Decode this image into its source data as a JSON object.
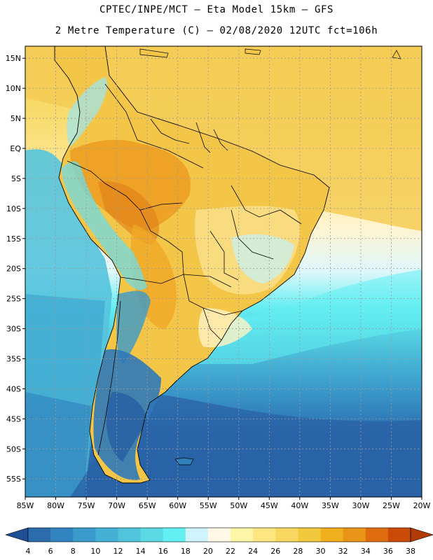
{
  "header": {
    "line1": "CPTEC/INPE/MCT –  Eta Model 15km – GFS",
    "line2": "2 Metre Temperature (C) – 02/08/2020 12UTC fct=106h"
  },
  "map": {
    "lon_range": [
      -85,
      -20
    ],
    "lat_range": [
      -58,
      17
    ],
    "lat_ticks": [
      {
        "value": 15,
        "label": "15N"
      },
      {
        "value": 10,
        "label": "10N"
      },
      {
        "value": 5,
        "label": "5N"
      },
      {
        "value": 0,
        "label": "EQ"
      },
      {
        "value": -5,
        "label": "5S"
      },
      {
        "value": -10,
        "label": "10S"
      },
      {
        "value": -15,
        "label": "15S"
      },
      {
        "value": -20,
        "label": "20S"
      },
      {
        "value": -25,
        "label": "25S"
      },
      {
        "value": -30,
        "label": "30S"
      },
      {
        "value": -35,
        "label": "35S"
      },
      {
        "value": -40,
        "label": "40S"
      },
      {
        "value": -45,
        "label": "45S"
      },
      {
        "value": -50,
        "label": "50S"
      },
      {
        "value": -55,
        "label": "55S"
      }
    ],
    "lon_ticks": [
      {
        "value": -85,
        "label": "85W"
      },
      {
        "value": -80,
        "label": "80W"
      },
      {
        "value": -75,
        "label": "75W"
      },
      {
        "value": -70,
        "label": "70W"
      },
      {
        "value": -65,
        "label": "65W"
      },
      {
        "value": -60,
        "label": "60W"
      },
      {
        "value": -55,
        "label": "55W"
      },
      {
        "value": -50,
        "label": "50W"
      },
      {
        "value": -45,
        "label": "45W"
      },
      {
        "value": -40,
        "label": "40W"
      },
      {
        "value": -35,
        "label": "35W"
      },
      {
        "value": -30,
        "label": "30W"
      },
      {
        "value": -25,
        "label": "25W"
      },
      {
        "value": -20,
        "label": "20W"
      }
    ]
  },
  "colorbar": {
    "labels": [
      "4",
      "6",
      "8",
      "10",
      "12",
      "14",
      "16",
      "18",
      "20",
      "22",
      "24",
      "26",
      "28",
      "30",
      "32",
      "34",
      "36",
      "38"
    ],
    "colors": [
      "#2b6cad",
      "#3184bf",
      "#3a9acb",
      "#44b0d4",
      "#4fc4dc",
      "#5ad8e4",
      "#63f0f2",
      "#cff3ff",
      "#fff8e6",
      "#fff5a6",
      "#ffe680",
      "#f8d860",
      "#f2c83c",
      "#f0b01e",
      "#ea9418",
      "#e06c10",
      "#cc4a08"
    ],
    "low_color": "#1f4f94",
    "high_color": "#b23a06"
  }
}
